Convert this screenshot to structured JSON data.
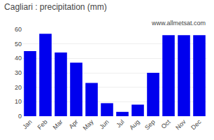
{
  "chart_data": {
    "type": "bar",
    "title": "Cagliari : precipitation (mm)",
    "categories": [
      "Jan",
      "Feb",
      "Mar",
      "Apr",
      "May",
      "Jun",
      "Jul",
      "Aug",
      "Sep",
      "Oct",
      "Nov",
      "Dec"
    ],
    "values": [
      45,
      57,
      44,
      37,
      23,
      9,
      3,
      8,
      30,
      56,
      56,
      56
    ],
    "color": "#0000ee",
    "ylim": [
      0,
      60
    ],
    "yticks": [
      0,
      10,
      20,
      30,
      40,
      50,
      60
    ],
    "grid": true,
    "annotations": [
      "www.allmetsat.com"
    ]
  }
}
